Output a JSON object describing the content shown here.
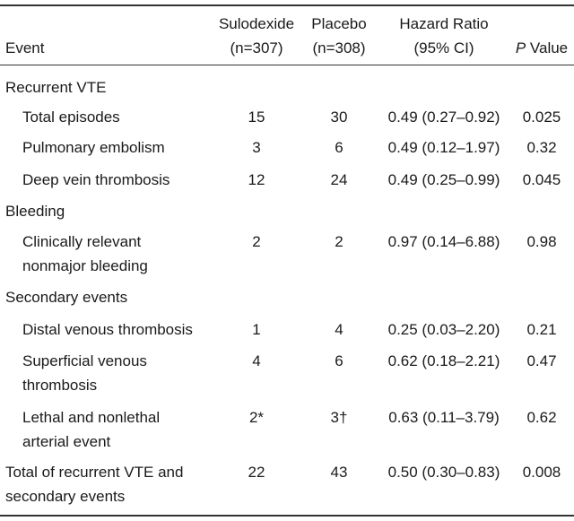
{
  "header": {
    "event": "Event",
    "sulodexide_line1": "Sulodexide",
    "sulodexide_line2": "(n=307)",
    "placebo_line1": "Placebo",
    "placebo_line2": "(n=308)",
    "hr_line1": "Hazard Ratio",
    "hr_line2": "(95% CI)",
    "p_italic": "P",
    "p_rest": " Value"
  },
  "sections": [
    {
      "title": "Recurrent VTE",
      "rows": [
        {
          "event": [
            "Total episodes"
          ],
          "sulodexide": "15",
          "placebo": "30",
          "hr": "0.49 (0.27–0.92)",
          "p": "0.025"
        },
        {
          "event": [
            "Pulmonary embolism"
          ],
          "sulodexide": "3",
          "placebo": "6",
          "hr": "0.49 (0.12–1.97)",
          "p": "0.32"
        },
        {
          "event": [
            "Deep vein thrombosis"
          ],
          "sulodexide": "12",
          "placebo": "24",
          "hr": "0.49 (0.25–0.99)",
          "p": "0.045"
        }
      ]
    },
    {
      "title": "Bleeding",
      "rows": [
        {
          "event": [
            "Clinically relevant",
            "nonmajor bleeding"
          ],
          "sulodexide": "2",
          "placebo": "2",
          "hr": "0.97 (0.14–6.88)",
          "p": "0.98"
        }
      ]
    },
    {
      "title": "Secondary events",
      "rows": [
        {
          "event": [
            "Distal venous thrombosis"
          ],
          "sulodexide": "1",
          "placebo": "4",
          "hr": "0.25 (0.03–2.20)",
          "p": "0.21"
        },
        {
          "event": [
            "Superficial venous",
            "thrombosis"
          ],
          "sulodexide": "4",
          "placebo": "6",
          "hr": "0.62 (0.18–2.21)",
          "p": "0.47"
        },
        {
          "event": [
            "Lethal and nonlethal",
            "arterial event"
          ],
          "sulodexide": "2*",
          "placebo": "3†",
          "hr": "0.63 (0.11–3.79)",
          "p": "0.62"
        }
      ]
    }
  ],
  "total": {
    "event": [
      "Total of recurrent VTE and",
      "secondary events"
    ],
    "sulodexide": "22",
    "placebo": "43",
    "hr": "0.50 (0.30–0.83)",
    "p": "0.008"
  }
}
